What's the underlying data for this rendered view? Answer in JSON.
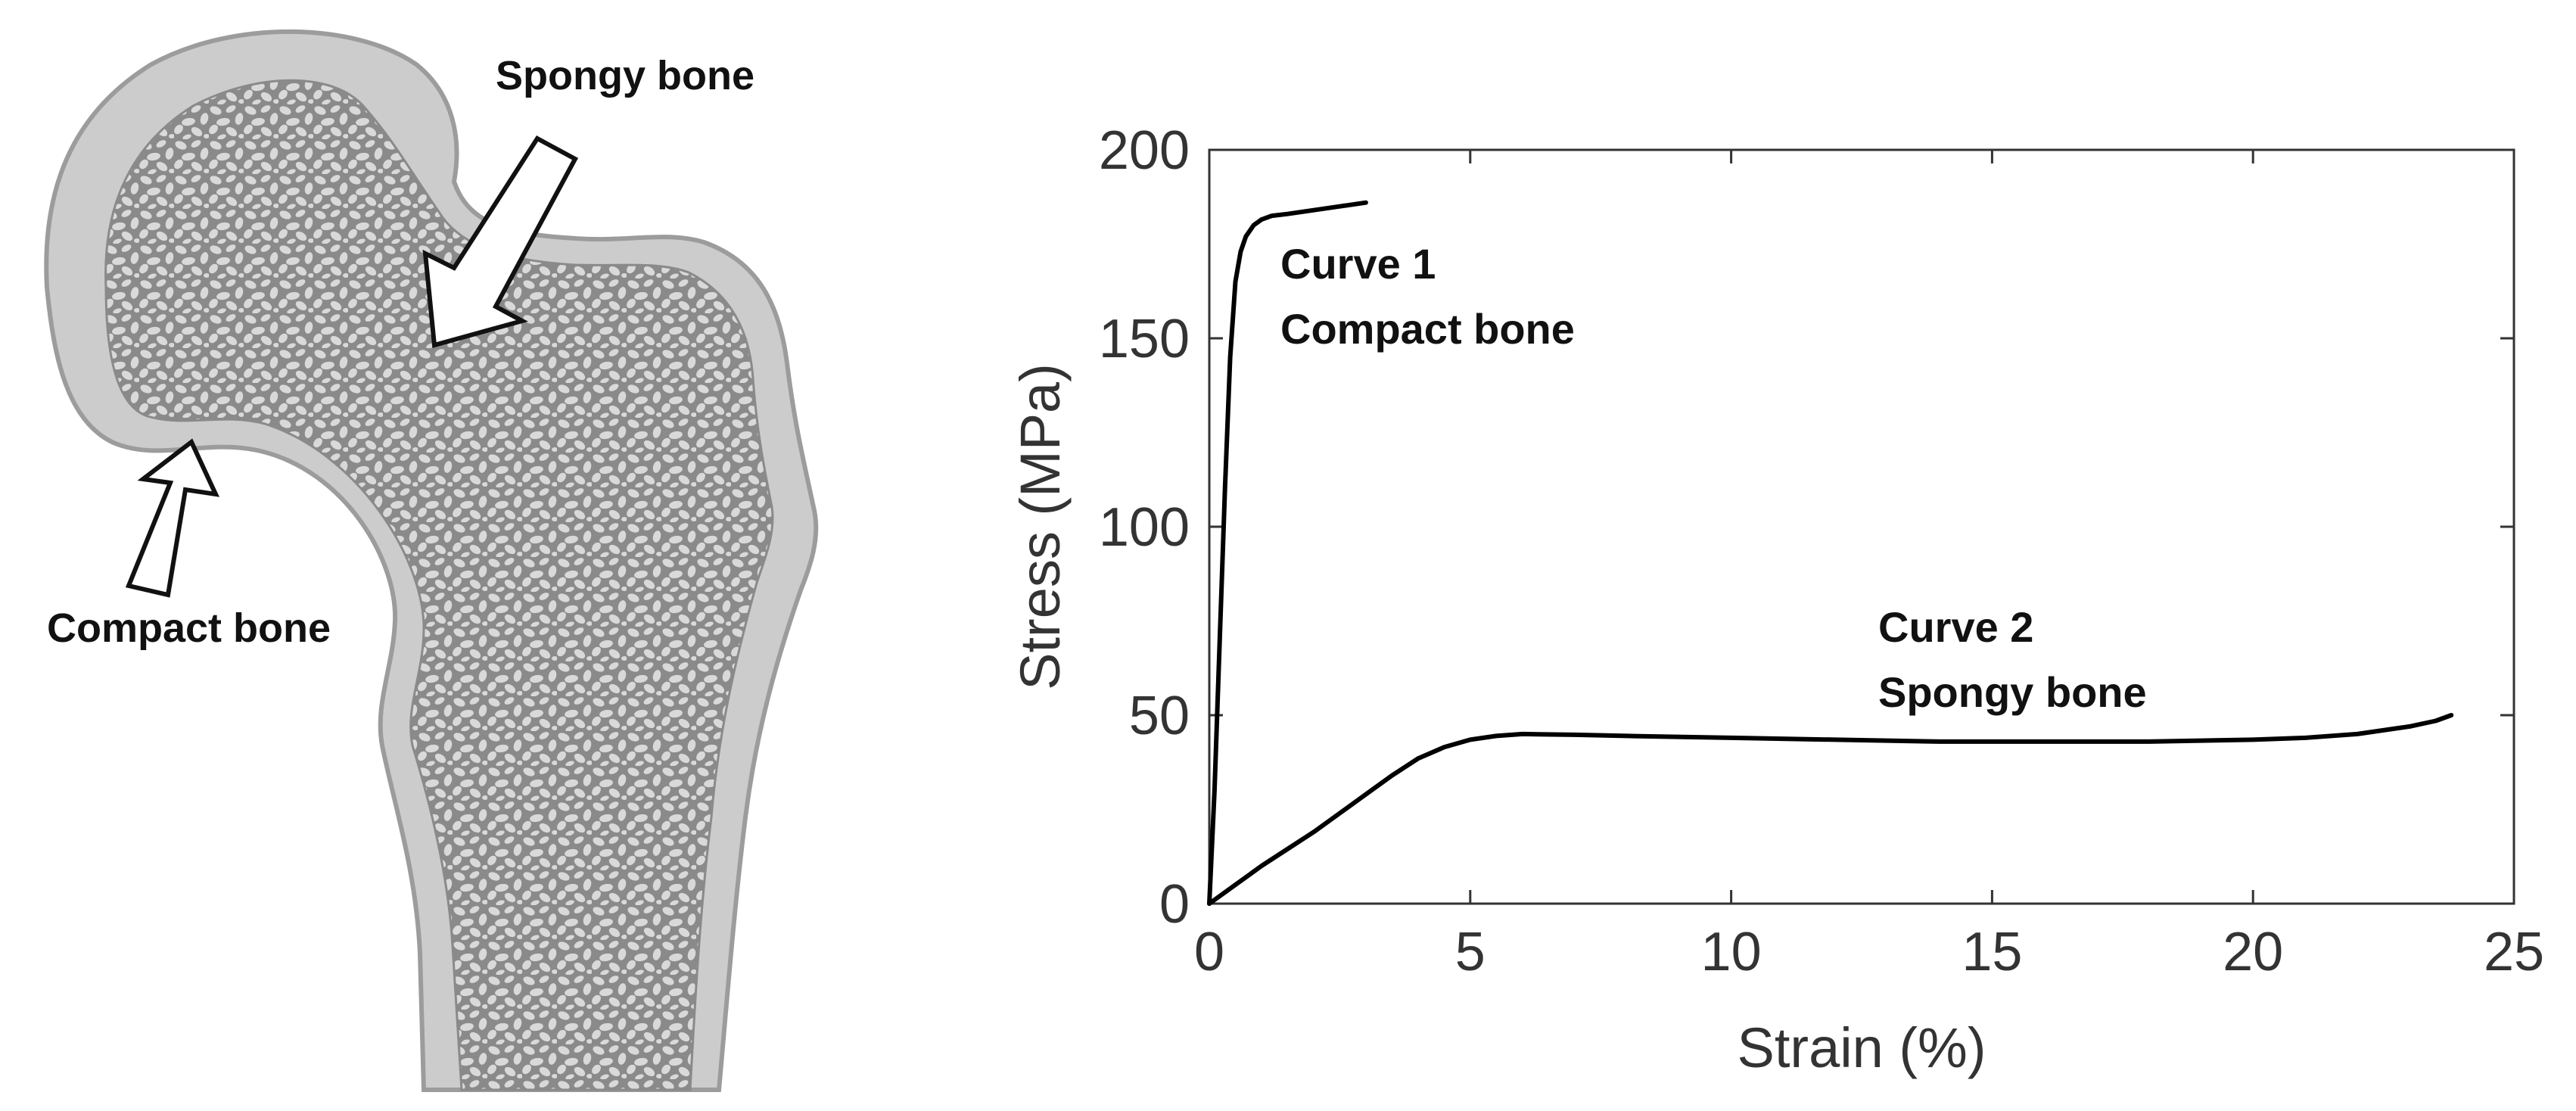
{
  "illustration": {
    "labels": {
      "spongy": "Spongy bone",
      "compact": "Compact bone"
    },
    "colors": {
      "cortex": "#cccccc",
      "cortex_edge": "#9c9c9c",
      "marrow": "#8a8a8a",
      "pore": "#d9d9d9"
    }
  },
  "chart_data": {
    "type": "line",
    "xlabel": "Strain (%)",
    "ylabel": "Stress (MPa)",
    "xlim": [
      0,
      25
    ],
    "ylim": [
      0,
      200
    ],
    "xticks": [
      0,
      5,
      10,
      15,
      20,
      25
    ],
    "yticks": [
      0,
      50,
      100,
      150,
      200
    ],
    "grid": false,
    "series": [
      {
        "annotation": [
          "Curve 1",
          "Compact bone"
        ],
        "color": "#000000",
        "x": [
          0,
          0.1,
          0.2,
          0.3,
          0.4,
          0.5,
          0.6,
          0.7,
          0.85,
          1.0,
          1.2,
          1.5,
          2.0,
          2.5,
          3.0
        ],
        "y": [
          0,
          30,
          70,
          110,
          145,
          165,
          173,
          177,
          180,
          181.5,
          182.5,
          183,
          184,
          185,
          186
        ]
      },
      {
        "annotation": [
          "Curve 2",
          "Spongy bone"
        ],
        "color": "#000000",
        "x": [
          0,
          0.5,
          1,
          1.5,
          2,
          2.5,
          3,
          3.5,
          4,
          4.5,
          5,
          5.5,
          6,
          7,
          8,
          10,
          12,
          14,
          16,
          18,
          20,
          21,
          22,
          22.5,
          23,
          23.5,
          23.8
        ],
        "y": [
          0,
          5,
          10,
          14.5,
          19,
          24,
          29,
          34,
          38.5,
          41.5,
          43.5,
          44.5,
          45,
          44.8,
          44.5,
          44,
          43.5,
          43,
          43,
          43,
          43.5,
          44,
          45,
          46,
          47,
          48.5,
          50
        ]
      }
    ]
  }
}
